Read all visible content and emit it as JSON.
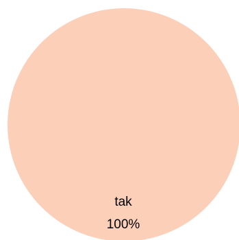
{
  "chart_data": {
    "type": "pie",
    "title": "",
    "categories": [
      "tak"
    ],
    "values": [
      100
    ],
    "slices": [
      {
        "label": "tak",
        "value": 100,
        "percent_label": "100%",
        "color": "#FCCFB9"
      }
    ],
    "legend": "none",
    "data_labels": "category-and-percent"
  }
}
